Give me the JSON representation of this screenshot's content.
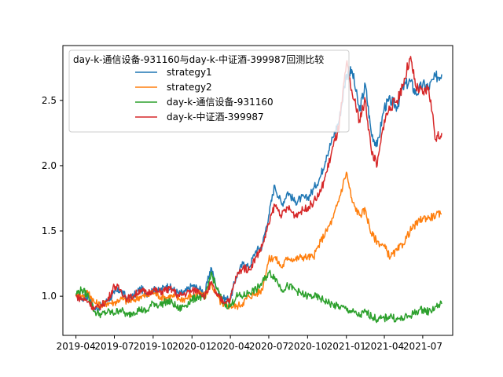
{
  "chart_data": {
    "type": "line",
    "legend_title": "day-k-通信设备-931160与day-k-中证酒-399987回测比较",
    "legend_placement": "upper-left",
    "grid": false,
    "xlabel": "",
    "ylabel": "",
    "x_ticks": [
      "2019-04",
      "2019-07",
      "2019-10",
      "2020-01",
      "2020-04",
      "2020-07",
      "2020-10",
      "2021-01",
      "2021-04",
      "2021-07"
    ],
    "y_ticks": [
      "1.0",
      "1.5",
      "2.0",
      "2.5"
    ],
    "ylim": [
      0.7,
      2.92
    ],
    "xlim": [
      "2019-03-01",
      "2021-09-10"
    ],
    "x": [
      "2019-04-01",
      "2019-04-15",
      "2019-05-01",
      "2019-05-15",
      "2019-06-01",
      "2019-06-15",
      "2019-07-01",
      "2019-07-15",
      "2019-08-01",
      "2019-08-15",
      "2019-09-01",
      "2019-09-15",
      "2019-10-01",
      "2019-10-15",
      "2019-11-01",
      "2019-11-15",
      "2019-12-01",
      "2019-12-15",
      "2020-01-01",
      "2020-01-15",
      "2020-02-01",
      "2020-02-15",
      "2020-03-01",
      "2020-03-15",
      "2020-04-01",
      "2020-04-15",
      "2020-05-01",
      "2020-05-15",
      "2020-06-01",
      "2020-06-15",
      "2020-07-01",
      "2020-07-15",
      "2020-08-01",
      "2020-08-15",
      "2020-09-01",
      "2020-09-15",
      "2020-10-01",
      "2020-10-15",
      "2020-11-01",
      "2020-11-15",
      "2020-12-01",
      "2020-12-15",
      "2021-01-01",
      "2021-01-15",
      "2021-02-01",
      "2021-02-15",
      "2021-03-01",
      "2021-03-15",
      "2021-04-01",
      "2021-04-15",
      "2021-05-01",
      "2021-05-15",
      "2021-06-01",
      "2021-06-15",
      "2021-07-01",
      "2021-07-15",
      "2021-08-01",
      "2021-08-15"
    ],
    "series": [
      {
        "name": "strategy1",
        "color": "#1f77b4",
        "values": [
          1.0,
          0.98,
          1.0,
          0.9,
          0.93,
          0.97,
          1.02,
          1.05,
          0.98,
          1.0,
          1.06,
          1.02,
          1.05,
          1.04,
          1.08,
          1.06,
          1.02,
          1.03,
          1.08,
          1.06,
          1.03,
          1.22,
          1.05,
          0.98,
          0.98,
          1.15,
          1.25,
          1.22,
          1.35,
          1.38,
          1.62,
          1.85,
          1.7,
          1.8,
          1.72,
          1.75,
          1.75,
          1.82,
          1.92,
          2.08,
          2.22,
          2.35,
          2.7,
          2.72,
          2.42,
          2.62,
          2.25,
          2.15,
          2.45,
          2.5,
          2.45,
          2.6,
          2.65,
          2.55,
          2.62,
          2.6,
          2.68,
          2.7
        ]
      },
      {
        "name": "strategy2",
        "color": "#ff7f0e",
        "values": [
          1.02,
          1.0,
          1.03,
          0.95,
          0.93,
          0.95,
          0.95,
          0.98,
          0.96,
          0.97,
          1.0,
          1.0,
          1.03,
          1.0,
          0.99,
          1.0,
          0.98,
          0.98,
          1.0,
          1.02,
          1.0,
          1.1,
          1.0,
          0.92,
          0.93,
          0.92,
          0.95,
          1.0,
          1.02,
          1.05,
          1.28,
          1.3,
          1.22,
          1.3,
          1.28,
          1.3,
          1.3,
          1.3,
          1.42,
          1.5,
          1.6,
          1.75,
          1.95,
          1.72,
          1.62,
          1.66,
          1.48,
          1.42,
          1.38,
          1.3,
          1.35,
          1.4,
          1.5,
          1.55,
          1.6,
          1.6,
          1.62,
          1.63
        ]
      },
      {
        "name": "day-k-通信设备-931160",
        "color": "#2ca02c",
        "values": [
          1.02,
          1.05,
          1.0,
          0.88,
          0.86,
          0.88,
          0.87,
          0.9,
          0.85,
          0.88,
          0.9,
          0.88,
          0.95,
          0.93,
          0.96,
          0.95,
          0.9,
          0.93,
          0.97,
          1.0,
          0.98,
          1.18,
          1.05,
          0.95,
          0.92,
          1.0,
          1.0,
          1.03,
          1.05,
          1.1,
          1.18,
          1.15,
          1.05,
          1.08,
          1.05,
          1.02,
          1.0,
          1.0,
          0.98,
          0.96,
          0.93,
          0.92,
          0.9,
          0.88,
          0.85,
          0.88,
          0.85,
          0.82,
          0.83,
          0.85,
          0.82,
          0.83,
          0.85,
          0.88,
          0.9,
          0.88,
          0.92,
          0.94
        ]
      },
      {
        "name": "day-k-中证酒-399987",
        "color": "#d62728",
        "values": [
          1.0,
          0.98,
          0.96,
          0.9,
          0.93,
          0.97,
          1.08,
          1.05,
          0.98,
          1.0,
          1.05,
          1.02,
          1.05,
          1.03,
          1.05,
          1.05,
          1.0,
          1.02,
          1.04,
          1.05,
          1.0,
          1.1,
          1.0,
          0.96,
          0.98,
          1.15,
          1.22,
          1.2,
          1.3,
          1.38,
          1.55,
          1.7,
          1.62,
          1.68,
          1.62,
          1.65,
          1.68,
          1.72,
          1.8,
          1.95,
          2.15,
          2.3,
          2.78,
          2.55,
          2.35,
          2.5,
          2.12,
          2.0,
          2.35,
          2.45,
          2.5,
          2.62,
          2.82,
          2.6,
          2.55,
          2.6,
          2.2,
          2.25
        ]
      }
    ]
  }
}
